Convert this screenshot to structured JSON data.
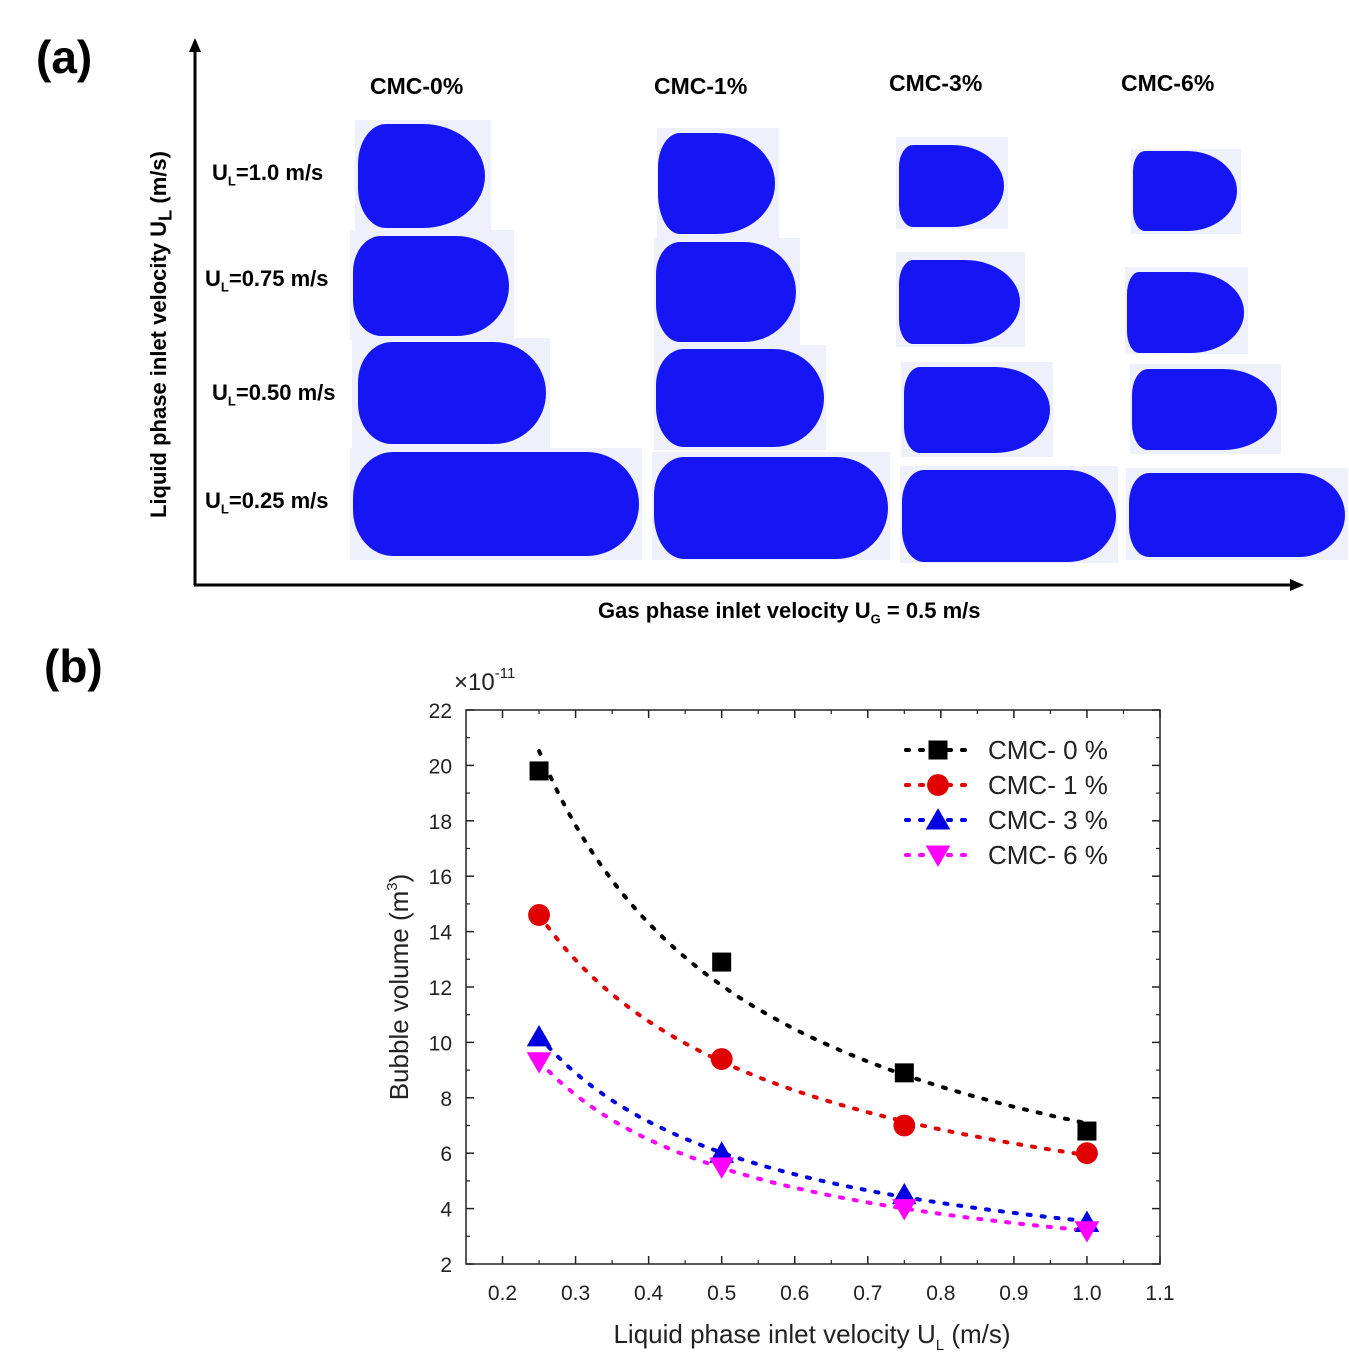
{
  "panel_a": {
    "label": "(a)",
    "y_axis_label": "Liquid phase inlet velocity U",
    "y_axis_sub": "L",
    "y_axis_unit": " (m/s)",
    "x_axis_label": "Gas phase inlet velocity U",
    "x_axis_sub": "G",
    "x_axis_value": " = 0.5 m/s",
    "columns": [
      "CMC-0%",
      "CMC-1%",
      "CMC-3%",
      "CMC-6%"
    ],
    "rows": [
      {
        "prefix": "U",
        "sub": "L",
        "value": "=1.0 m/s"
      },
      {
        "prefix": "U",
        "sub": "L",
        "value": "=0.75 m/s"
      },
      {
        "prefix": "U",
        "sub": "L",
        "value": "=0.50 m/s"
      },
      {
        "prefix": "U",
        "sub": "L",
        "value": "=0.25 m/s"
      }
    ],
    "bubble_color": "#1616f4"
  },
  "panel_b": {
    "label": "(b)"
  },
  "chart_data": {
    "type": "scatter",
    "title": "",
    "xlabel": "Liquid phase inlet velocity U",
    "xlabel_sub": "L",
    "xlabel_unit": " (m/s)",
    "ylabel": "Bubble volume (m",
    "ylabel_sup": "3",
    "ylabel_end": ")",
    "y_multiplier": "×10",
    "y_multiplier_exp": "-11",
    "xlim": [
      0.15,
      1.1
    ],
    "ylim": [
      2,
      22
    ],
    "xticks": [
      0.2,
      0.3,
      0.4,
      0.5,
      0.6,
      0.7,
      0.8,
      0.9,
      1.0,
      1.1
    ],
    "xtick_labels": [
      "0.2",
      "0.3",
      "0.4",
      "0.5",
      "0.6",
      "0.7",
      "0.8",
      "0.9",
      "1.0",
      "1.1"
    ],
    "yticks": [
      2,
      4,
      6,
      8,
      10,
      12,
      14,
      16,
      18,
      20,
      22
    ],
    "ytick_labels": [
      "2",
      "4",
      "6",
      "8",
      "10",
      "12",
      "14",
      "16",
      "18",
      "20",
      "22"
    ],
    "legend_position": "top-right",
    "fit_lines": "dotted",
    "x": [
      0.25,
      0.5,
      0.75,
      1.0
    ],
    "series": [
      {
        "name": "CMC- 0 %",
        "marker": "square",
        "color": "#000000",
        "values": [
          19.8,
          12.9,
          8.9,
          6.8
        ]
      },
      {
        "name": "CMC- 1 %",
        "marker": "circle",
        "color": "#e00000",
        "values": [
          14.6,
          9.4,
          7.0,
          6.0
        ]
      },
      {
        "name": "CMC- 3 %",
        "marker": "triangle-up",
        "color": "#0000e0",
        "values": [
          10.2,
          6.0,
          4.5,
          3.5
        ]
      },
      {
        "name": "CMC- 6 %",
        "marker": "triangle-down",
        "color": "#ff00ff",
        "values": [
          9.3,
          5.5,
          4.0,
          3.2
        ]
      }
    ]
  }
}
